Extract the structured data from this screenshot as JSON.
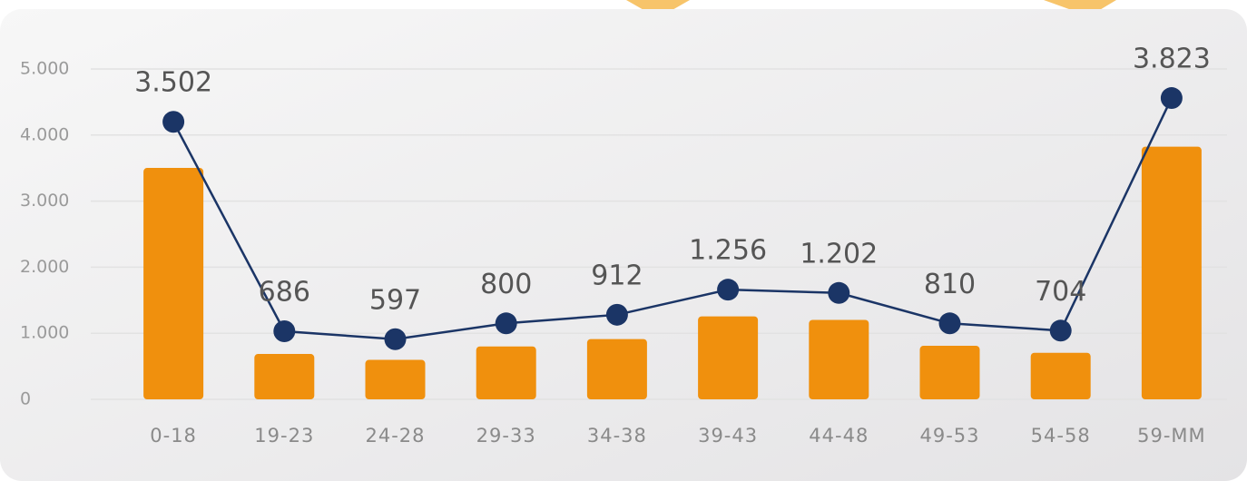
{
  "chart_data": {
    "type": "bar_line",
    "categories": [
      "0-18",
      "19-23",
      "24-28",
      "29-33",
      "34-38",
      "39-43",
      "44-48",
      "49-53",
      "54-58",
      "59-MM"
    ],
    "series": [
      {
        "type": "bar",
        "color": "#f0900d",
        "values": [
          3502,
          686,
          597,
          800,
          912,
          1256,
          1202,
          810,
          704,
          3823
        ],
        "value_labels": [
          "3.502",
          "686",
          "597",
          "800",
          "912",
          "1.256",
          "1.202",
          "810",
          "704",
          "3.823"
        ]
      },
      {
        "type": "line",
        "color": "#1b3566",
        "values": [
          4200,
          1030,
          910,
          1150,
          1280,
          1660,
          1610,
          1150,
          1040,
          4560
        ]
      }
    ],
    "ylim": [
      0,
      5000
    ],
    "yticks": [
      0,
      {
        "value": 1000,
        "label": "1.000"
      },
      {
        "value": 2000,
        "label": "2.000"
      },
      {
        "value": 3000,
        "label": "3.000"
      },
      {
        "value": 4000,
        "label": "4.000"
      },
      {
        "value": 5000,
        "label": "5.000"
      }
    ],
    "grid": true
  }
}
